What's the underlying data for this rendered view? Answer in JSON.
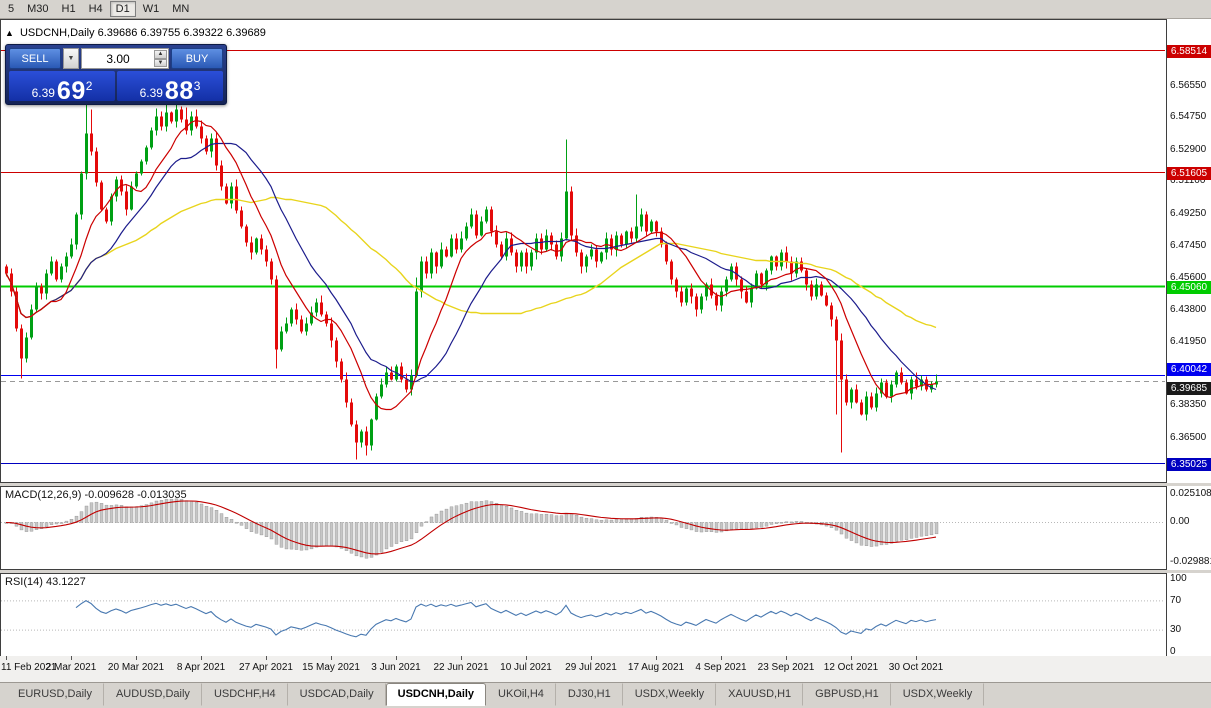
{
  "toolbar": {
    "items": [
      {
        "label": "5",
        "active": false
      },
      {
        "label": "M30",
        "active": false
      },
      {
        "label": "H1",
        "active": false
      },
      {
        "label": "H4",
        "active": false
      },
      {
        "label": "D1",
        "active": true
      },
      {
        "label": "W1",
        "active": false
      },
      {
        "label": "MN",
        "active": false
      }
    ]
  },
  "chart": {
    "symbol": "USDCNH,Daily",
    "ohlc": "6.39686 6.39755 6.39322 6.39689"
  },
  "icons": {
    "collapse": "▲",
    "dropdown": "▼",
    "spin_up": "▲",
    "spin_down": "▼"
  },
  "one_click": {
    "sell_label": "SELL",
    "buy_label": "BUY",
    "volume": "3.00",
    "sell_price": {
      "small": "6.39",
      "big": "69",
      "sup": "2"
    },
    "buy_price": {
      "small": "6.39",
      "big": "88",
      "sup": "3"
    }
  },
  "price_axis_ticks": [
    "6.56550",
    "6.54750",
    "6.52900",
    "6.51100",
    "6.49250",
    "6.47450",
    "6.45600",
    "6.43800",
    "6.41950",
    "6.38350",
    "6.36500",
    "6.34700"
  ],
  "levels": [
    {
      "price": 6.58514,
      "label": "6.58514",
      "color": "#cc0000"
    },
    {
      "price": 6.51605,
      "label": "6.51605",
      "color": "#cc0000"
    },
    {
      "price": 6.4506,
      "label": "6.45060",
      "color": "#00cc00",
      "width": 2
    },
    {
      "price": 6.40042,
      "label": "6.40042",
      "color": "#0000f0",
      "stack": "above"
    },
    {
      "price": 6.39685,
      "label": "6.39685",
      "color": "#1a1a1a",
      "bg": "#1a1a1a",
      "dashed": true,
      "stack": "below"
    },
    {
      "price": 6.35025,
      "label": "6.35025",
      "color": "#0000c0"
    }
  ],
  "macd_panel": {
    "name": "MACD(12,26,9)",
    "values": "-0.009628 -0.013035",
    "axis": [
      {
        "text": "0.025108",
        "y": 8
      },
      {
        "text": "0.00",
        "y": 36
      },
      {
        "text": "-0.029881",
        "y": 76
      }
    ]
  },
  "rsi_panel": {
    "name": "RSI(14)",
    "value": "43.1227",
    "axis": [
      {
        "text": "100",
        "v": 100
      },
      {
        "text": "70",
        "v": 70
      },
      {
        "text": "30",
        "v": 30
      },
      {
        "text": "0",
        "v": 0
      }
    ]
  },
  "dates": [
    "11 Feb 2021",
    "2 Mar 2021",
    "20 Mar 2021",
    "8 Apr 2021",
    "27 Apr 2021",
    "15 May 2021",
    "3 Jun 2021",
    "22 Jun 2021",
    "10 Jul 2021",
    "29 Jul 2021",
    "17 Aug 2021",
    "4 Sep 2021",
    "23 Sep 2021",
    "12 Oct 2021",
    "30 Oct 2021"
  ],
  "tabs": [
    {
      "label": "EURUSD,Daily",
      "active": false
    },
    {
      "label": "AUDUSD,Daily",
      "active": false
    },
    {
      "label": "USDCHF,H4",
      "active": false
    },
    {
      "label": "USDCAD,Daily",
      "active": false
    },
    {
      "label": "USDCNH,Daily",
      "active": true
    },
    {
      "label": "UKOil,H4",
      "active": false
    },
    {
      "label": "DJ30,H1",
      "active": false
    },
    {
      "label": "USDX,Weekly",
      "active": false
    },
    {
      "label": "XAUUSD,H1",
      "active": false
    },
    {
      "label": "GBPUSD,H1",
      "active": false
    },
    {
      "label": "USDX,Weekly",
      "active": false
    }
  ],
  "chart_data": {
    "type": "candlestick",
    "symbol": "USDCNH",
    "timeframe": "Daily",
    "current_bar": {
      "open": 6.39686,
      "high": 6.39755,
      "low": 6.39322,
      "close": 6.39689
    },
    "macd_current": [
      -0.009628,
      -0.013035
    ],
    "rsi_current": 43.1227,
    "horizontal_levels": [
      6.58514,
      6.51605,
      6.4506,
      6.40042,
      6.39685,
      6.35025
    ],
    "first_open": 6.462,
    "closes": [
      6.458,
      6.448,
      6.427,
      6.41,
      6.422,
      6.438,
      6.451,
      6.447,
      6.458,
      6.465,
      6.455,
      6.462,
      6.468,
      6.475,
      6.492,
      6.515,
      6.538,
      6.528,
      6.51,
      6.495,
      6.488,
      6.502,
      6.512,
      6.505,
      6.495,
      6.508,
      6.515,
      6.522,
      6.53,
      6.54,
      6.548,
      6.542,
      6.55,
      6.545,
      6.552,
      6.546,
      6.54,
      6.548,
      6.542,
      6.535,
      6.528,
      6.535,
      6.52,
      6.508,
      6.498,
      6.508,
      6.494,
      6.485,
      6.476,
      6.47,
      6.478,
      6.472,
      6.465,
      6.455,
      6.415,
      6.425,
      6.43,
      6.438,
      6.432,
      6.425,
      6.43,
      6.436,
      6.442,
      6.435,
      6.43,
      6.42,
      6.408,
      6.398,
      6.385,
      6.372,
      6.362,
      6.368,
      6.36,
      6.375,
      6.388,
      6.395,
      6.402,
      6.398,
      6.405,
      6.398,
      6.392,
      6.4,
      6.448,
      6.465,
      6.458,
      6.47,
      6.462,
      6.472,
      6.468,
      6.478,
      6.472,
      6.478,
      6.485,
      6.492,
      6.48,
      6.488,
      6.495,
      6.482,
      6.475,
      6.468,
      6.478,
      6.47,
      6.462,
      6.47,
      6.462,
      6.47,
      6.478,
      6.472,
      6.48,
      6.475,
      6.468,
      6.478,
      6.505,
      6.48,
      6.47,
      6.462,
      6.468,
      6.472,
      6.465,
      6.47,
      6.478,
      6.472,
      6.48,
      6.475,
      6.482,
      6.478,
      6.485,
      6.492,
      6.482,
      6.488,
      6.482,
      6.475,
      6.465,
      6.455,
      6.448,
      6.442,
      6.45,
      6.445,
      6.438,
      6.445,
      6.452,
      6.446,
      6.44,
      6.448,
      6.455,
      6.462,
      6.455,
      6.448,
      6.442,
      6.45,
      6.458,
      6.452,
      6.46,
      6.468,
      6.462,
      6.47,
      6.465,
      6.458,
      6.465,
      6.46,
      6.452,
      6.445,
      6.452,
      6.446,
      6.44,
      6.432,
      6.42,
      6.398,
      6.385,
      6.392,
      6.385,
      6.378,
      6.388,
      6.382,
      6.39,
      6.396,
      6.388,
      6.395,
      6.402,
      6.396,
      6.39,
      6.398,
      6.394,
      6.398,
      6.392,
      6.395,
      6.39689
    ],
    "wick_overrides": {
      "3": {
        "l": 6.3985
      },
      "16": {
        "h": 6.5545
      },
      "17": {
        "h": 6.552
      },
      "30": {
        "h": 6.5525
      },
      "32": {
        "h": 6.5555
      },
      "34": {
        "h": 6.556
      },
      "36": {
        "h": 6.553
      },
      "54": {
        "l": 6.404
      },
      "70": {
        "l": 6.3525
      },
      "72": {
        "l": 6.3545
      },
      "82": {
        "h": 6.456
      },
      "112": {
        "h": 6.5345
      },
      "126": {
        "h": 6.5035
      },
      "166": {
        "l": 6.378
      },
      "167": {
        "l": 6.356
      },
      "186": {
        "h": 6.4008
      }
    },
    "ma_periods": {
      "red": 10,
      "navy": 20,
      "yellow": 50
    },
    "colors": {
      "up": "#00a014",
      "down": "#e40a0a",
      "ma_fast": "#cc0000",
      "ma_slow": "#1c1c8c",
      "ma_long": "#e8d41c",
      "macd_hist": "#c6c6c6",
      "macd_signal": "#c00000",
      "rsi": "#4878b0"
    }
  }
}
